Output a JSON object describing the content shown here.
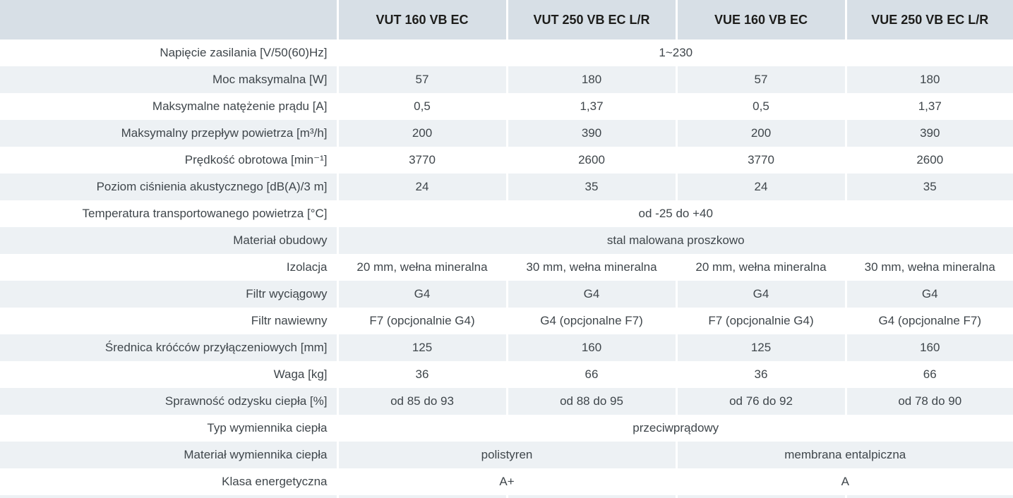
{
  "table": {
    "columns": [
      "VUT 160 VB EC",
      "VUT 250 VB EC L/R",
      "VUE 160 VB EC",
      "VUE 250 VB EC L/R"
    ],
    "rows": [
      {
        "label": "Napięcie zasilania [V/50(60)Hz]",
        "cells": [
          {
            "text": "1~230",
            "span": 4
          }
        ]
      },
      {
        "label": "Moc maksymalna [W]",
        "cells": [
          {
            "text": "57"
          },
          {
            "text": "180"
          },
          {
            "text": "57"
          },
          {
            "text": "180"
          }
        ]
      },
      {
        "label": "Maksymalne natężenie prądu [A]",
        "cells": [
          {
            "text": "0,5"
          },
          {
            "text": "1,37"
          },
          {
            "text": "0,5"
          },
          {
            "text": "1,37"
          }
        ]
      },
      {
        "label": "Maksymalny przepływ powietrza [m³/h]",
        "cells": [
          {
            "text": "200"
          },
          {
            "text": "390"
          },
          {
            "text": "200"
          },
          {
            "text": "390"
          }
        ]
      },
      {
        "label": "Prędkość obrotowa [min⁻¹]",
        "cells": [
          {
            "text": "3770"
          },
          {
            "text": "2600"
          },
          {
            "text": "3770"
          },
          {
            "text": "2600"
          }
        ]
      },
      {
        "label": "Poziom ciśnienia akustycznego [dB(A)/3 m]",
        "cells": [
          {
            "text": "24"
          },
          {
            "text": "35"
          },
          {
            "text": "24"
          },
          {
            "text": "35"
          }
        ]
      },
      {
        "label": "Temperatura transportowanego powietrza [°C]",
        "cells": [
          {
            "text": "od -25 do +40",
            "span": 4
          }
        ]
      },
      {
        "label": "Materiał obudowy",
        "cells": [
          {
            "text": "stal malowana proszkowo",
            "span": 4
          }
        ]
      },
      {
        "label": "Izolacja",
        "cells": [
          {
            "text": "20 mm, wełna mineralna"
          },
          {
            "text": "30 mm, wełna mineralna"
          },
          {
            "text": "20 mm, wełna mineralna"
          },
          {
            "text": "30 mm, wełna mineralna"
          }
        ]
      },
      {
        "label": "Filtr wyciągowy",
        "cells": [
          {
            "text": "G4"
          },
          {
            "text": "G4"
          },
          {
            "text": "G4"
          },
          {
            "text": "G4"
          }
        ]
      },
      {
        "label": "Filtr nawiewny",
        "cells": [
          {
            "text": "F7 (opcjonalnie G4)"
          },
          {
            "text": "G4 (opcjonalne F7)"
          },
          {
            "text": "F7 (opcjonalnie G4)"
          },
          {
            "text": "G4 (opcjonalne F7)"
          }
        ]
      },
      {
        "label": "Średnica króćców przyłączeniowych [mm]",
        "cells": [
          {
            "text": "125"
          },
          {
            "text": "160"
          },
          {
            "text": "125"
          },
          {
            "text": "160"
          }
        ]
      },
      {
        "label": "Waga [kg]",
        "cells": [
          {
            "text": "36"
          },
          {
            "text": "66"
          },
          {
            "text": "36"
          },
          {
            "text": "66"
          }
        ]
      },
      {
        "label": "Sprawność odzysku ciepła [%]",
        "cells": [
          {
            "text": "od 85 do 93"
          },
          {
            "text": "od 88 do 95"
          },
          {
            "text": "od 76 do 92"
          },
          {
            "text": "od 78 do 90"
          }
        ]
      },
      {
        "label": "Typ wymiennika ciepła",
        "cells": [
          {
            "text": "przeciwprądowy",
            "span": 4
          }
        ]
      },
      {
        "label": "Materiał wymiennika ciepła",
        "cells": [
          {
            "text": "polistyren",
            "span": 2
          },
          {
            "text": "membrana entalpiczna",
            "span": 2
          }
        ]
      },
      {
        "label": "Klasa energetyczna",
        "cells": [
          {
            "text": "A+",
            "span": 2
          },
          {
            "text": "A",
            "span": 2
          }
        ]
      }
    ],
    "colors": {
      "header_bg": "#d7dfe6",
      "row_alt_bg": "#edf1f4",
      "row_bg": "#ffffff",
      "divider": "#ffffff",
      "body_text": "#3f464b",
      "header_text": "#1d1d1b"
    }
  }
}
